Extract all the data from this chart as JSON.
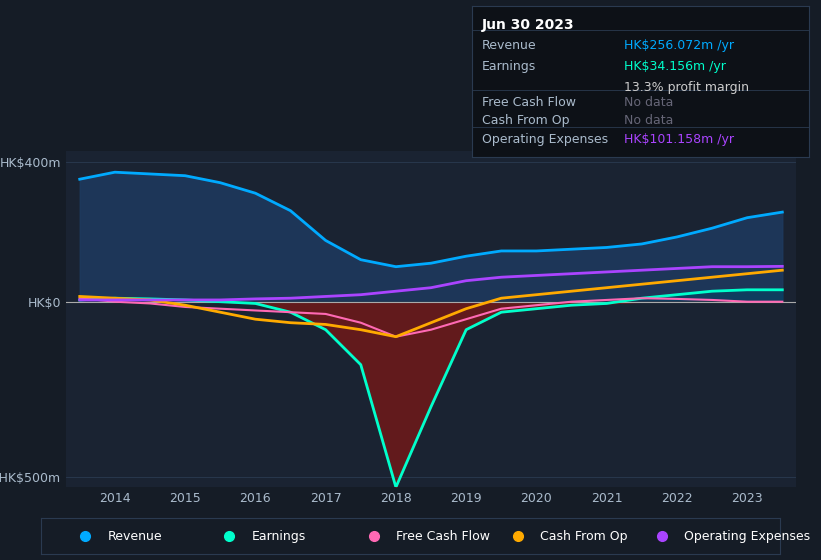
{
  "bg_color": "#151c26",
  "chart_bg": "#1a2332",
  "grid_color": "#2a3a50",
  "title_box_bg": "#0d1117",
  "title_box_border": "#2a3a50",
  "years": [
    2013.5,
    2014.0,
    2014.5,
    2015.0,
    2015.5,
    2016.0,
    2016.5,
    2017.0,
    2017.5,
    2018.0,
    2018.5,
    2019.0,
    2019.5,
    2020.0,
    2020.5,
    2021.0,
    2021.5,
    2022.0,
    2022.5,
    2023.0,
    2023.5
  ],
  "revenue": [
    350,
    370,
    365,
    360,
    340,
    310,
    260,
    175,
    120,
    100,
    110,
    130,
    145,
    145,
    150,
    155,
    165,
    185,
    210,
    240,
    256
  ],
  "earnings": [
    5,
    10,
    8,
    5,
    0,
    -5,
    -30,
    -80,
    -180,
    -530,
    -300,
    -80,
    -30,
    -20,
    -10,
    -5,
    10,
    20,
    30,
    34,
    34
  ],
  "free_cash_flow": [
    10,
    0,
    -5,
    -15,
    -20,
    -25,
    -30,
    -35,
    -60,
    -100,
    -80,
    -50,
    -20,
    -10,
    0,
    5,
    10,
    8,
    5,
    0,
    0
  ],
  "cash_from_op": [
    15,
    10,
    5,
    -10,
    -30,
    -50,
    -60,
    -65,
    -80,
    -100,
    -60,
    -20,
    10,
    20,
    30,
    40,
    50,
    60,
    70,
    80,
    90
  ],
  "operating_expenses": [
    5,
    5,
    5,
    5,
    5,
    8,
    10,
    15,
    20,
    30,
    40,
    60,
    70,
    75,
    80,
    85,
    90,
    95,
    100,
    100,
    101
  ],
  "revenue_color": "#00aaff",
  "earnings_color": "#00ffcc",
  "free_cash_flow_color": "#ff69b4",
  "cash_from_op_color": "#ffaa00",
  "operating_expenses_color": "#aa44ff",
  "revenue_fill_color": "#1e3a5f",
  "earnings_fill_neg_color": "#6b1a1a",
  "ylim_min": -530,
  "ylim_max": 430,
  "yticks": [
    400,
    0,
    -500
  ],
  "ytick_labels": [
    "HK$400m",
    "HK$0",
    "-HK$500m"
  ],
  "xticks": [
    2014,
    2015,
    2016,
    2017,
    2018,
    2019,
    2020,
    2021,
    2022,
    2023
  ],
  "info_box": {
    "date": "Jun 30 2023",
    "revenue_label": "Revenue",
    "revenue_value": "HK$256.072m /yr",
    "revenue_color": "#00aaff",
    "earnings_label": "Earnings",
    "earnings_value": "HK$34.156m /yr",
    "earnings_color": "#00ffcc",
    "margin_text": "13.3% profit margin",
    "margin_color": "#cccccc",
    "fcf_label": "Free Cash Flow",
    "fcf_value": "No data",
    "fcf_value_color": "#666677",
    "cashop_label": "Cash From Op",
    "cashop_value": "No data",
    "cashop_value_color": "#666677",
    "opex_label": "Operating Expenses",
    "opex_value": "HK$101.158m /yr",
    "opex_color": "#aa44ff"
  },
  "legend_items": [
    {
      "label": "Revenue",
      "color": "#00aaff"
    },
    {
      "label": "Earnings",
      "color": "#00ffcc"
    },
    {
      "label": "Free Cash Flow",
      "color": "#ff69b4"
    },
    {
      "label": "Cash From Op",
      "color": "#ffaa00"
    },
    {
      "label": "Operating Expenses",
      "color": "#aa44ff"
    }
  ],
  "label_color": "#aabbcc",
  "tick_color": "#aabbcc",
  "font_size_tick": 9,
  "font_size_legend": 9,
  "font_size_info": 9
}
